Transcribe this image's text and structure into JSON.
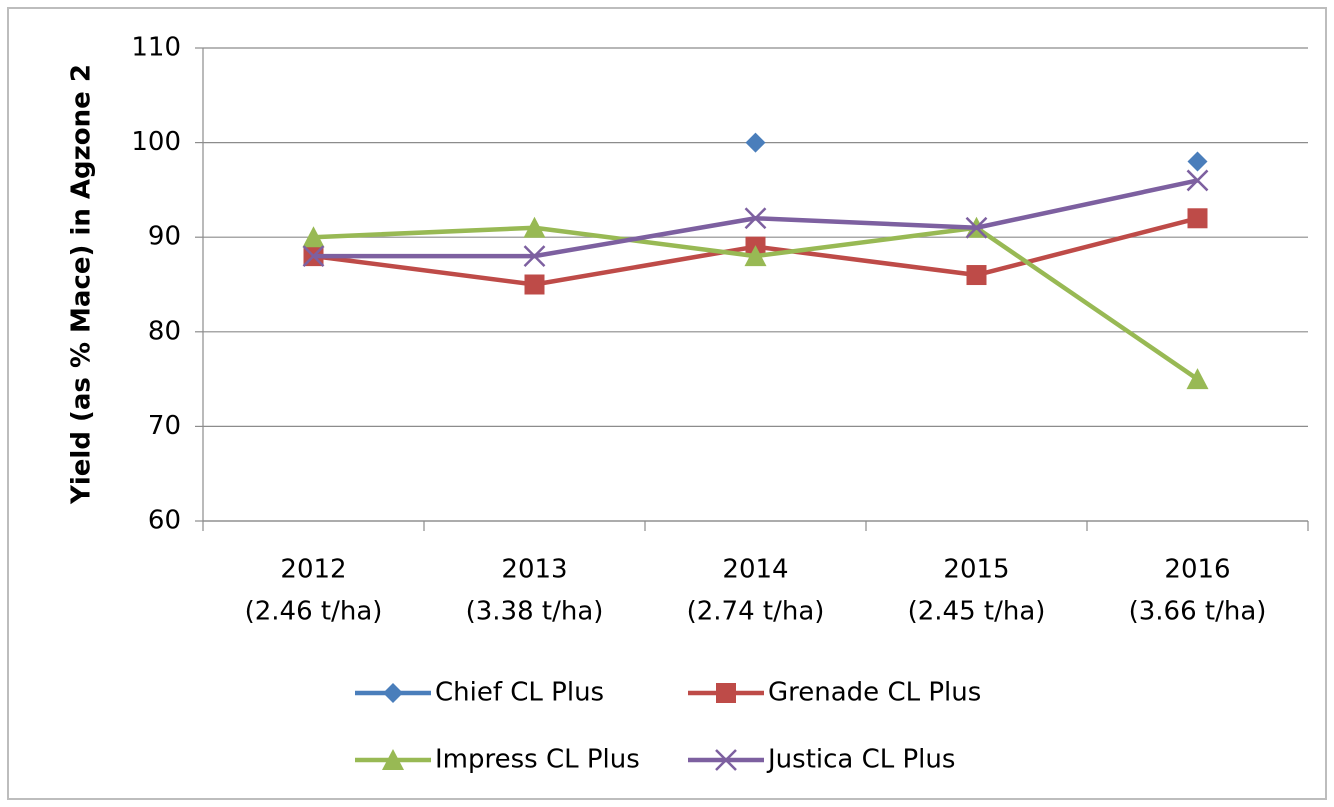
{
  "chart_data": {
    "type": "line",
    "y_label": "Yield (as % Mace) in Agzone 2",
    "categories": [
      [
        "2012",
        "(2.46 t/ha)"
      ],
      [
        "2013",
        "(3.38 t/ha)"
      ],
      [
        "2014",
        "(2.74 t/ha)"
      ],
      [
        "2015",
        "(2.45 t/ha)"
      ],
      [
        "2016",
        "(3.66 t/ha)"
      ]
    ],
    "series": [
      {
        "name": "Chief CL Plus",
        "color": "#4a7ebb",
        "marker": "diamond",
        "values": [
          null,
          null,
          100,
          null,
          98
        ]
      },
      {
        "name": "Grenade CL Plus",
        "color": "#be4b48",
        "marker": "square",
        "values": [
          88,
          85,
          89,
          86,
          92
        ]
      },
      {
        "name": "Impress CL Plus",
        "color": "#98b954",
        "marker": "triangle",
        "values": [
          90,
          91,
          88,
          91,
          75
        ]
      },
      {
        "name": "Justica CL Plus",
        "color": "#7d60a0",
        "marker": "x",
        "values": [
          88,
          88,
          92,
          91,
          96
        ]
      }
    ],
    "ylim": [
      60,
      110
    ],
    "yticks": [
      60,
      70,
      80,
      90,
      100,
      110
    ],
    "grid": true,
    "legend": "bottom"
  }
}
